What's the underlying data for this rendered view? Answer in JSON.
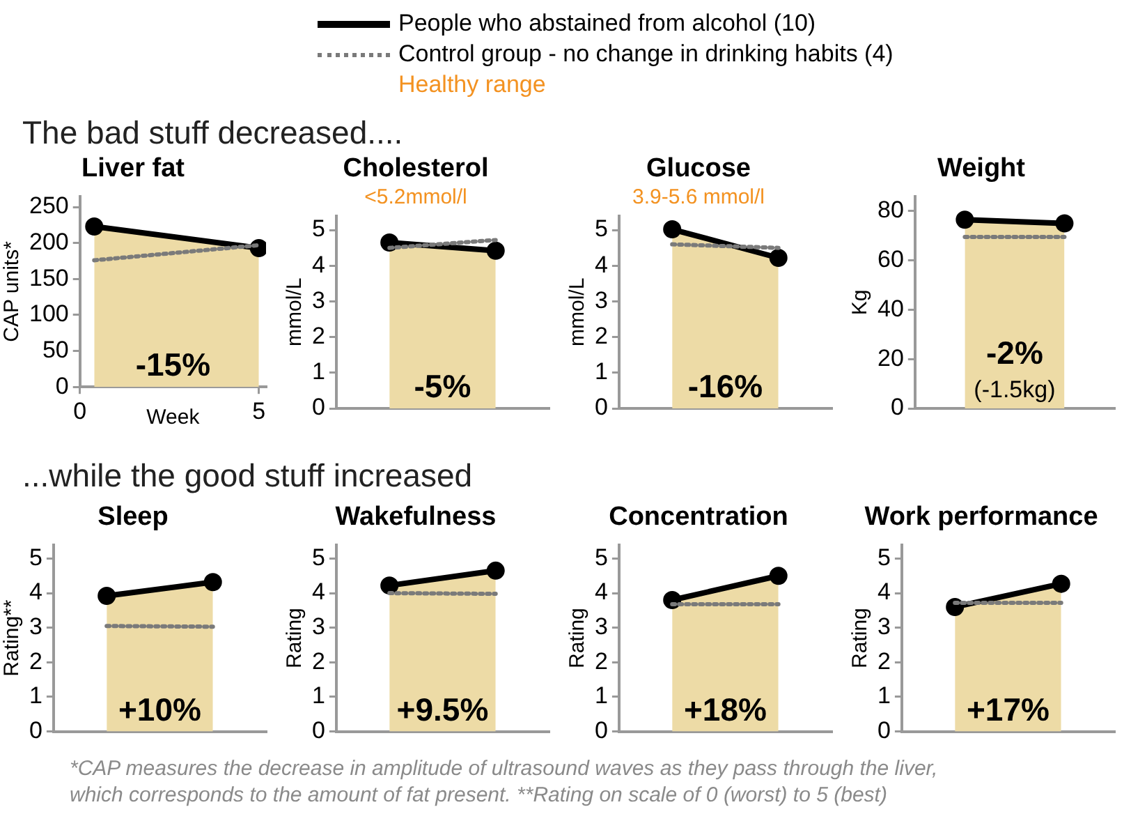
{
  "chart_data": [
    {
      "type": "other",
      "title": "The bad stuff decreased....",
      "annotations": [
        "Healthy range"
      ],
      "color": "#f39221"
    },
    {
      "type": "line",
      "title": "Liver fat",
      "ylabel": "CAP units*",
      "xlabel": "Week",
      "x": [
        0.4,
        5
      ],
      "xlim": [
        0,
        5.2
      ],
      "xticks": [
        0,
        5
      ],
      "ylim": [
        0,
        265
      ],
      "yticks": [
        0,
        50,
        100,
        150,
        200,
        250
      ],
      "grid": false,
      "legend": "top",
      "marker": "circle",
      "annotations": [
        "-15%"
      ],
      "series": [
        {
          "name": "People who abstained from alcohol (10)",
          "type": "area",
          "color": "#000000",
          "values": [
            223,
            193
          ]
        },
        {
          "name": "Control group - no change in drinking habits (4)",
          "type": "line",
          "color": "#7a7a7a",
          "line_style": "dotted",
          "marker": "none",
          "values": [
            176,
            197
          ]
        }
      ]
    },
    {
      "type": "line",
      "title": "Cholesterol",
      "subtitle": "<5.2mmol/l",
      "ylabel": "mmol/L",
      "categories": [
        null,
        null
      ],
      "ylim": [
        0,
        5.4
      ],
      "yticks": [
        0,
        1,
        2,
        3,
        4,
        5
      ],
      "grid": false,
      "tick_labels": "y",
      "marker": "circle",
      "annotations": [
        "-5%"
      ],
      "series": [
        {
          "type": "area",
          "color": "#000000",
          "values": [
            4.65,
            4.42
          ]
        },
        {
          "type": "line",
          "color": "#7a7a7a",
          "line_style": "dotted",
          "marker": "none",
          "values": [
            4.5,
            4.72
          ]
        }
      ]
    },
    {
      "type": "line",
      "title": "Glucose",
      "subtitle": "3.9-5.6 mmol/l",
      "ylabel": "mmol/L",
      "categories": [
        null,
        null
      ],
      "ylim": [
        0,
        5.4
      ],
      "yticks": [
        0,
        1,
        2,
        3,
        4,
        5
      ],
      "grid": false,
      "tick_labels": "y",
      "marker": "circle",
      "annotations": [
        "-16%"
      ],
      "series": [
        {
          "type": "area",
          "color": "#000000",
          "values": [
            5.02,
            4.22
          ]
        },
        {
          "type": "line",
          "color": "#7a7a7a",
          "line_style": "dotted",
          "marker": "none",
          "values": [
            4.6,
            4.5
          ]
        }
      ]
    },
    {
      "type": "line",
      "title": "Weight",
      "ylabel": "Kg",
      "categories": [
        null,
        null
      ],
      "ylim": [
        0,
        86
      ],
      "yticks": [
        0,
        20,
        40,
        60,
        80
      ],
      "grid": false,
      "tick_labels": "y",
      "marker": "circle",
      "annotations": [
        "-2%",
        "(-1.5kg)"
      ],
      "series": [
        {
          "type": "area",
          "color": "#000000",
          "values": [
            76.5,
            75
          ]
        },
        {
          "type": "line",
          "color": "#7a7a7a",
          "line_style": "dotted",
          "marker": "none",
          "values": [
            69.5,
            69.5
          ]
        }
      ]
    },
    {
      "type": "other",
      "title": "...while the good stuff increased"
    },
    {
      "type": "line",
      "title": "Sleep",
      "ylabel": "Rating**",
      "categories": [
        null,
        null
      ],
      "ylim": [
        0,
        5.4
      ],
      "yticks": [
        0,
        1,
        2,
        3,
        4,
        5
      ],
      "grid": false,
      "tick_labels": "y",
      "marker": "circle",
      "annotations": [
        "+10%"
      ],
      "series": [
        {
          "type": "area",
          "color": "#000000",
          "values": [
            3.92,
            4.32
          ]
        },
        {
          "type": "line",
          "color": "#7a7a7a",
          "line_style": "dotted",
          "marker": "none",
          "values": [
            3.05,
            3.03
          ]
        }
      ]
    },
    {
      "type": "line",
      "title": "Wakefulness",
      "ylabel": "Rating",
      "categories": [
        null,
        null
      ],
      "ylim": [
        0,
        5.4
      ],
      "yticks": [
        0,
        1,
        2,
        3,
        4,
        5
      ],
      "grid": false,
      "tick_labels": "y",
      "marker": "circle",
      "annotations": [
        "+9.5%"
      ],
      "series": [
        {
          "type": "area",
          "color": "#000000",
          "values": [
            4.22,
            4.65
          ]
        },
        {
          "type": "line",
          "color": "#7a7a7a",
          "line_style": "dotted",
          "marker": "none",
          "values": [
            4.0,
            3.98
          ]
        }
      ]
    },
    {
      "type": "line",
      "title": "Concentration",
      "ylabel": "Rating",
      "categories": [
        null,
        null
      ],
      "ylim": [
        0,
        5.4
      ],
      "yticks": [
        0,
        1,
        2,
        3,
        4,
        5
      ],
      "grid": false,
      "tick_labels": "y",
      "marker": "circle",
      "annotations": [
        "+18%"
      ],
      "series": [
        {
          "type": "area",
          "color": "#000000",
          "values": [
            3.8,
            4.5
          ]
        },
        {
          "type": "line",
          "color": "#7a7a7a",
          "line_style": "dotted",
          "marker": "none",
          "values": [
            3.68,
            3.68
          ]
        }
      ]
    },
    {
      "type": "line",
      "title": "Work performance",
      "ylabel": "Rating",
      "categories": [
        null,
        null
      ],
      "ylim": [
        0,
        5.4
      ],
      "yticks": [
        0,
        1,
        2,
        3,
        4,
        5
      ],
      "grid": false,
      "tick_labels": "y",
      "marker": "circle",
      "annotations": [
        "+17%"
      ],
      "series": [
        {
          "type": "area",
          "color": "#000000",
          "values": [
            3.6,
            4.27
          ]
        },
        {
          "type": "line",
          "color": "#7a7a7a",
          "line_style": "dotted",
          "marker": "none",
          "values": [
            3.72,
            3.72
          ]
        }
      ]
    },
    {
      "type": "other",
      "annotations": [
        "*CAP measures the decrease in amplitude of ultrasound waves as they pass through the liver,",
        "which corresponds to the amount of fat present. **Rating on scale of 0 (worst) to 5 (best)"
      ],
      "color": "#8a8a8a"
    }
  ]
}
